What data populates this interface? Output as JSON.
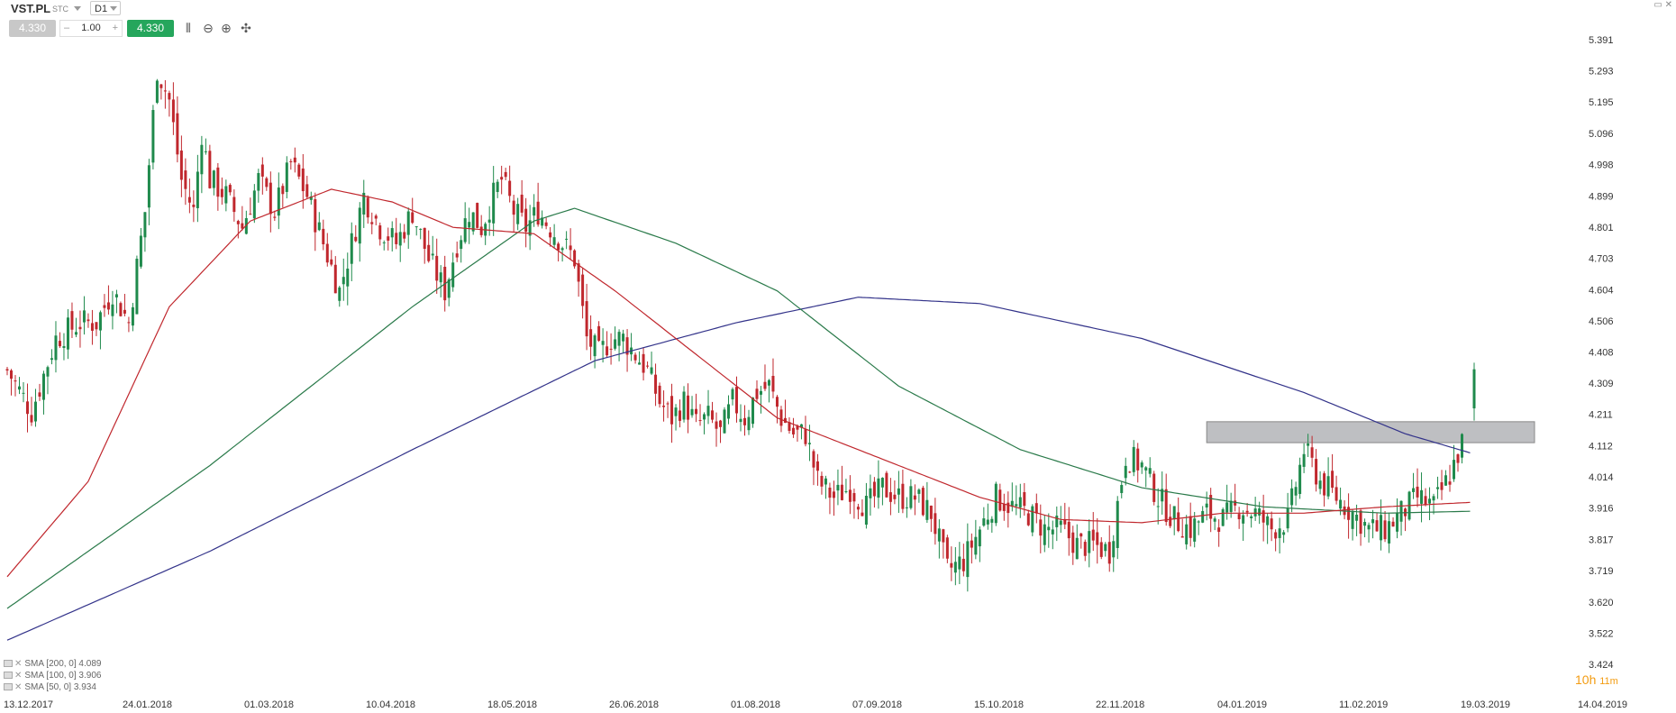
{
  "toolbar": {
    "symbol": "VST.PL",
    "market": "STC",
    "timeframe": "D1",
    "sell_price": "4.330",
    "quantity": "1.00",
    "minus": "–",
    "plus": "+",
    "buy_price": "4.330",
    "icons": [
      "indicators-icon",
      "zoom-out-icon",
      "zoom-in-icon",
      "crosshair-icon"
    ]
  },
  "legend": [
    {
      "label": "SMA [200, 0] 4.089"
    },
    {
      "label": "SMA [100, 0] 3.906"
    },
    {
      "label": "SMA [50, 0] 3.934"
    }
  ],
  "countdown": {
    "hours": "10h",
    "minutes": "11m"
  },
  "colors": {
    "up": "#1f8a4c",
    "down": "#c0272d",
    "sma200": "#33338a",
    "sma100": "#2a7a4a",
    "sma50": "#c0272d",
    "zone": "#a8aaad"
  },
  "chart_data": {
    "type": "candlestick",
    "x_tick_labels": [
      "13.12.2017",
      "24.01.2018",
      "01.03.2018",
      "10.04.2018",
      "18.05.2018",
      "26.06.2018",
      "01.08.2018",
      "07.09.2018",
      "15.10.2018",
      "22.11.2018",
      "04.01.2019",
      "11.02.2019",
      "19.03.2019",
      "14.04.2019"
    ],
    "y_tick_labels": [
      "5.391",
      "5.293",
      "5.195",
      "5.096",
      "4.998",
      "4.899",
      "4.801",
      "4.703",
      "4.604",
      "4.506",
      "4.408",
      "4.309",
      "4.211",
      "4.112",
      "4.014",
      "3.916",
      "3.817",
      "3.719",
      "3.620",
      "3.522",
      "3.424"
    ],
    "ylim": [
      3.424,
      5.391
    ],
    "last_price": 4.33,
    "resistance_zone": [
      4.122,
      4.188
    ],
    "close_keypoints": [
      [
        0,
        4.35
      ],
      [
        6,
        4.22
      ],
      [
        12,
        4.45
      ],
      [
        18,
        4.5
      ],
      [
        22,
        4.5
      ],
      [
        26,
        4.6
      ],
      [
        30,
        4.5
      ],
      [
        34,
        4.85
      ],
      [
        37,
        5.3
      ],
      [
        40,
        5.2
      ],
      [
        43,
        4.95
      ],
      [
        46,
        4.85
      ],
      [
        48,
        5.1
      ],
      [
        50,
        4.95
      ],
      [
        54,
        4.9
      ],
      [
        58,
        4.8
      ],
      [
        62,
        4.95
      ],
      [
        66,
        4.85
      ],
      [
        70,
        5.0
      ],
      [
        74,
        4.9
      ],
      [
        78,
        4.75
      ],
      [
        82,
        4.6
      ],
      [
        85,
        4.75
      ],
      [
        88,
        4.9
      ],
      [
        92,
        4.8
      ],
      [
        96,
        4.75
      ],
      [
        100,
        4.85
      ],
      [
        104,
        4.7
      ],
      [
        108,
        4.6
      ],
      [
        111,
        4.75
      ],
      [
        114,
        4.85
      ],
      [
        117,
        4.8
      ],
      [
        120,
        4.9
      ],
      [
        122,
        4.95
      ],
      [
        125,
        4.85
      ],
      [
        128,
        4.8
      ],
      [
        131,
        4.85
      ],
      [
        134,
        4.8
      ],
      [
        137,
        4.75
      ],
      [
        140,
        4.7
      ],
      [
        143,
        4.45
      ],
      [
        146,
        4.4
      ],
      [
        149,
        4.45
      ],
      [
        152,
        4.45
      ],
      [
        155,
        4.4
      ],
      [
        158,
        4.35
      ],
      [
        161,
        4.25
      ],
      [
        164,
        4.2
      ],
      [
        167,
        4.25
      ],
      [
        170,
        4.18
      ],
      [
        173,
        4.2
      ],
      [
        176,
        4.15
      ],
      [
        179,
        4.25
      ],
      [
        182,
        4.2
      ],
      [
        185,
        4.28
      ],
      [
        188,
        4.3
      ],
      [
        191,
        4.2
      ],
      [
        194,
        4.15
      ],
      [
        197,
        4.15
      ],
      [
        200,
        4.0
      ],
      [
        204,
        3.95
      ],
      [
        208,
        3.98
      ],
      [
        212,
        3.92
      ],
      [
        216,
        3.98
      ],
      [
        220,
        3.95
      ],
      [
        224,
        3.95
      ],
      [
        228,
        3.9
      ],
      [
        232,
        3.72
      ],
      [
        236,
        3.75
      ],
      [
        240,
        3.85
      ],
      [
        244,
        3.95
      ],
      [
        248,
        3.92
      ],
      [
        252,
        3.9
      ],
      [
        256,
        3.85
      ],
      [
        260,
        3.85
      ],
      [
        264,
        3.8
      ],
      [
        268,
        3.8
      ],
      [
        272,
        3.78
      ],
      [
        276,
        4.08
      ],
      [
        280,
        4.05
      ],
      [
        284,
        3.95
      ],
      [
        288,
        3.88
      ],
      [
        292,
        3.85
      ],
      [
        296,
        3.9
      ],
      [
        300,
        3.88
      ],
      [
        304,
        3.92
      ],
      [
        308,
        3.9
      ],
      [
        312,
        3.85
      ],
      [
        316,
        3.88
      ],
      [
        320,
        4.1
      ],
      [
        324,
        4.0
      ],
      [
        328,
        3.95
      ],
      [
        332,
        3.9
      ],
      [
        336,
        3.85
      ],
      [
        340,
        3.85
      ],
      [
        344,
        3.9
      ],
      [
        348,
        3.95
      ],
      [
        352,
        3.92
      ],
      [
        356,
        4.02
      ],
      [
        359,
        4.12
      ],
      [
        362,
        4.33
      ]
    ],
    "sma200_keypoints": [
      [
        0,
        3.5
      ],
      [
        50,
        3.78
      ],
      [
        100,
        4.1
      ],
      [
        145,
        4.38
      ],
      [
        180,
        4.5
      ],
      [
        210,
        4.58
      ],
      [
        240,
        4.56
      ],
      [
        280,
        4.45
      ],
      [
        320,
        4.28
      ],
      [
        345,
        4.15
      ],
      [
        361,
        4.09
      ]
    ],
    "sma100_keypoints": [
      [
        0,
        3.6
      ],
      [
        50,
        4.05
      ],
      [
        100,
        4.55
      ],
      [
        130,
        4.82
      ],
      [
        140,
        4.86
      ],
      [
        165,
        4.75
      ],
      [
        190,
        4.6
      ],
      [
        220,
        4.3
      ],
      [
        250,
        4.1
      ],
      [
        280,
        3.98
      ],
      [
        310,
        3.92
      ],
      [
        340,
        3.9
      ],
      [
        361,
        3.906
      ]
    ],
    "sma50_keypoints": [
      [
        0,
        3.7
      ],
      [
        20,
        4.0
      ],
      [
        40,
        4.55
      ],
      [
        60,
        4.82
      ],
      [
        80,
        4.92
      ],
      [
        95,
        4.88
      ],
      [
        110,
        4.8
      ],
      [
        130,
        4.78
      ],
      [
        150,
        4.6
      ],
      [
        170,
        4.4
      ],
      [
        190,
        4.2
      ],
      [
        210,
        4.1
      ],
      [
        240,
        3.95
      ],
      [
        260,
        3.88
      ],
      [
        280,
        3.87
      ],
      [
        300,
        3.9
      ],
      [
        320,
        3.9
      ],
      [
        340,
        3.92
      ],
      [
        361,
        3.934
      ]
    ]
  }
}
